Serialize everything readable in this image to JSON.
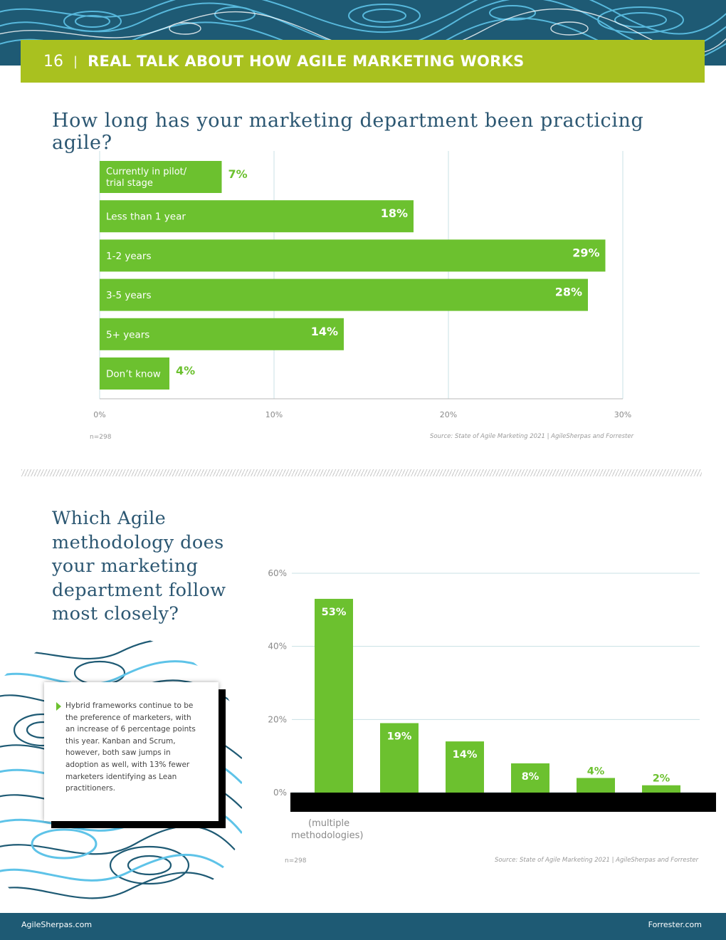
{
  "header": {
    "page_number": "16",
    "separator": "|",
    "title": "REAL TALK ABOUT HOW AGILE MARKETING WORKS"
  },
  "section1": {
    "question": "How long has your marketing department been practicing agile?",
    "n": "n=298",
    "source": "Source: State of Agile Marketing 2021 | AgileSherpas and Forrester"
  },
  "section2": {
    "question": "Which Agile methodology does your marketing department follow most closely?",
    "n": "n=298",
    "source": "Source: State of Agile Marketing 2021 | AgileSherpas and Forrester",
    "x_label_fragment_1": "(multiple",
    "x_label_fragment_2": "methodologies)"
  },
  "note": {
    "text": "Hybrid frameworks continue to be the preference of marketers, with an increase of 6 percentage points this year. Kanban and Scrum, however, both saw jumps in adoption as well, with 13% fewer marketers identifying as Lean practitioners."
  },
  "footer": {
    "left": "AgileSherpas.com",
    "right": "Forrester.com"
  },
  "colors": {
    "bar": "#6cc12f",
    "header_bar": "#a9c11f",
    "navy": "#1e5a74",
    "title": "#2c5772",
    "grid": "#c8e0e4"
  },
  "chart_data": [
    {
      "type": "bar",
      "orientation": "horizontal",
      "categories": [
        "Currently in pilot/ trial stage",
        "Less than 1 year",
        "1-2 years",
        "3-5 years",
        "5+ years",
        "Don’t know"
      ],
      "values": [
        7,
        18,
        29,
        28,
        14,
        4
      ],
      "value_labels": [
        "7%",
        "18%",
        "29%",
        "28%",
        "14%",
        "4%"
      ],
      "xlim": [
        0,
        30
      ],
      "x_ticks": [
        "0%",
        "10%",
        "20%",
        "30%"
      ],
      "grid": true
    },
    {
      "type": "bar",
      "orientation": "vertical",
      "categories": [
        "",
        "",
        "",
        "",
        "",
        ""
      ],
      "values": [
        53,
        19,
        14,
        8,
        4,
        2
      ],
      "value_labels": [
        "53%",
        "19%",
        "14%",
        "8%",
        "4%",
        "2%"
      ],
      "ylim": [
        0,
        60
      ],
      "y_ticks": [
        "0%",
        "20%",
        "40%",
        "60%"
      ],
      "grid": true
    }
  ]
}
